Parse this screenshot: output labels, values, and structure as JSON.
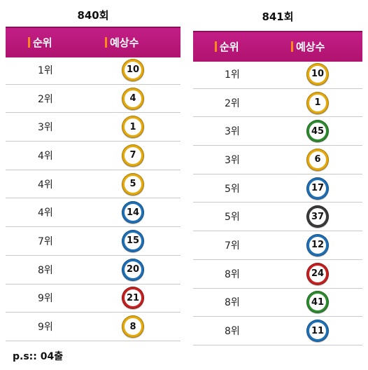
{
  "left": {
    "title": "840회",
    "header": {
      "rank": "순위",
      "number": "예상수"
    },
    "rows": [
      {
        "rank": "1위",
        "num": "10",
        "color": "#e3a90f"
      },
      {
        "rank": "2위",
        "num": "4",
        "color": "#e3a90f"
      },
      {
        "rank": "3위",
        "num": "1",
        "color": "#e3a90f"
      },
      {
        "rank": "4위",
        "num": "7",
        "color": "#e3a90f"
      },
      {
        "rank": "4위",
        "num": "5",
        "color": "#e3a90f"
      },
      {
        "rank": "4위",
        "num": "14",
        "color": "#1f6fb5"
      },
      {
        "rank": "7위",
        "num": "15",
        "color": "#1f6fb5"
      },
      {
        "rank": "8위",
        "num": "20",
        "color": "#1f6fb5"
      },
      {
        "rank": "9위",
        "num": "21",
        "color": "#c4201f"
      },
      {
        "rank": "9위",
        "num": "8",
        "color": "#e3a90f"
      }
    ]
  },
  "right": {
    "title": "841회",
    "header": {
      "rank": "순위",
      "number": "예상수"
    },
    "rows": [
      {
        "rank": "1위",
        "num": "10",
        "color": "#e3a90f"
      },
      {
        "rank": "2위",
        "num": "1",
        "color": "#e3a90f"
      },
      {
        "rank": "3위",
        "num": "45",
        "color": "#2e8a2e"
      },
      {
        "rank": "3위",
        "num": "6",
        "color": "#e3a90f"
      },
      {
        "rank": "5위",
        "num": "17",
        "color": "#1f6fb5"
      },
      {
        "rank": "5위",
        "num": "37",
        "color": "#3a3a3a"
      },
      {
        "rank": "7위",
        "num": "12",
        "color": "#1f6fb5"
      },
      {
        "rank": "8위",
        "num": "24",
        "color": "#c4201f"
      },
      {
        "rank": "8위",
        "num": "41",
        "color": "#2e8a2e"
      },
      {
        "rank": "8위",
        "num": "11",
        "color": "#1f6fb5"
      }
    ]
  },
  "note": "p.s:: 04출"
}
